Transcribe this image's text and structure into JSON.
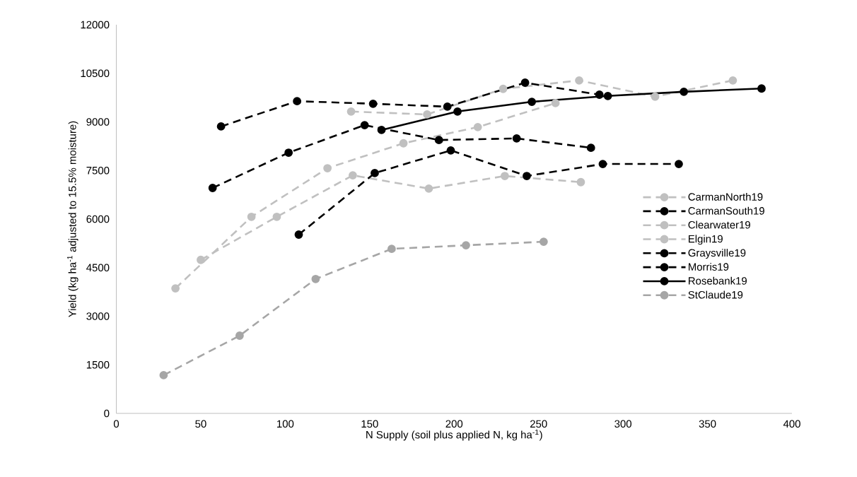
{
  "chart_data": {
    "type": "line",
    "xlabel": "N Supply (soil plus applied N, kg ha$^{-1}$)",
    "ylabel": "Yield (kg ha$^{-1}$ adjusted to 15.5% moisture)",
    "xlim": [
      0,
      400
    ],
    "xticks": [
      0,
      50,
      100,
      150,
      200,
      250,
      300,
      350,
      400
    ],
    "ylim": [
      0,
      12000
    ],
    "yticks": [
      0,
      1500,
      3000,
      4500,
      6000,
      7500,
      9000,
      10500,
      12000
    ],
    "marker": "circle",
    "legend": "right",
    "series": [
      {
        "name": "CarmanNorth19",
        "color": "#c0c0c0",
        "line_style": "dashed",
        "x": [
          139,
          184,
          229,
          274,
          319,
          365
        ],
        "values": [
          9320,
          9230,
          10020,
          10280,
          9780,
          10280
        ]
      },
      {
        "name": "CarmanSouth19",
        "color": "#000000",
        "line_style": "dashed",
        "x": [
          62,
          107,
          152,
          196,
          242,
          286
        ],
        "values": [
          8860,
          9640,
          9560,
          9470,
          10210,
          9840
        ]
      },
      {
        "name": "Clearwater19",
        "color": "#c0c0c0",
        "line_style": "dashed",
        "x": [
          35,
          80,
          125,
          170,
          214,
          260
        ],
        "values": [
          3860,
          6070,
          7570,
          8340,
          8840,
          9580
        ]
      },
      {
        "name": "Elgin19",
        "color": "#c0c0c0",
        "line_style": "dashed",
        "x": [
          50,
          95,
          140,
          185,
          230,
          275
        ],
        "values": [
          4740,
          6070,
          7350,
          6940,
          7330,
          7140
        ]
      },
      {
        "name": "Graysville19",
        "color": "#000000",
        "line_style": "dashed",
        "x": [
          57,
          102,
          147,
          191,
          237,
          281
        ],
        "values": [
          6960,
          8050,
          8900,
          8440,
          8490,
          8200
        ]
      },
      {
        "name": "Morris19",
        "color": "#000000",
        "line_style": "dashed",
        "x": [
          108,
          153,
          198,
          243,
          288,
          333
        ],
        "values": [
          5520,
          7420,
          8120,
          7330,
          7700,
          7700
        ]
      },
      {
        "name": "Rosebank19",
        "color": "#000000",
        "line_style": "solid",
        "x": [
          157,
          202,
          246,
          291,
          336,
          382
        ],
        "values": [
          8750,
          9320,
          9620,
          9800,
          9930,
          10030
        ]
      },
      {
        "name": "StClaude19",
        "color": "#a6a6a6",
        "line_style": "dashed",
        "x": [
          28,
          73,
          118,
          163,
          207,
          253
        ],
        "values": [
          1180,
          2400,
          4150,
          5080,
          5190,
          5300
        ]
      }
    ]
  }
}
